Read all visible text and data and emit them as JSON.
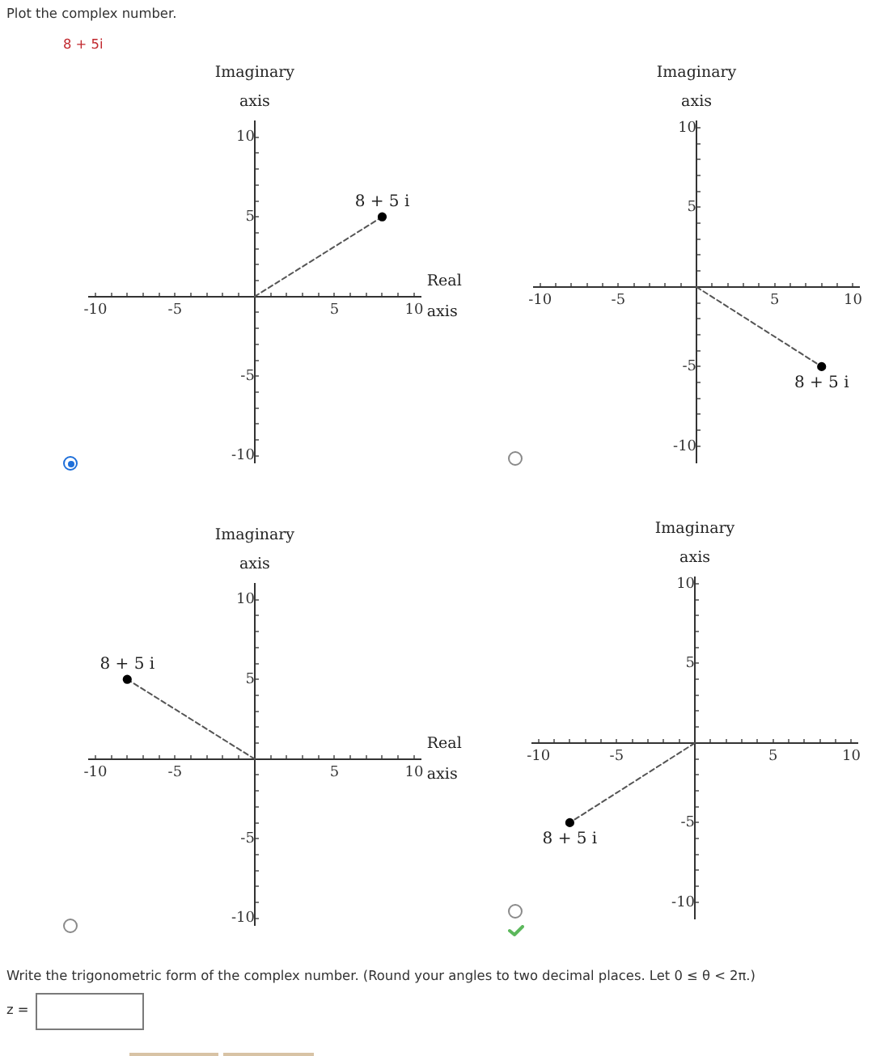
{
  "chart_data": [
    {
      "type": "scatter",
      "title": "Plot the complex number.",
      "subtitle": "8 + 5i",
      "ylabel": "Imaginary axis",
      "xlabel": "Real axis",
      "series": [
        {
          "type": "line",
          "x": [
            0,
            8
          ],
          "values": [
            0,
            5
          ],
          "color": "#555555",
          "line_style": "dashed",
          "marker": "none"
        },
        {
          "type": "scatter",
          "name": "8 + 5 i",
          "x": [
            8
          ],
          "values": [
            5
          ],
          "color": "#000000",
          "marker": "circle"
        }
      ],
      "xlim": [
        -10.4,
        10.4
      ],
      "ylim": [
        -10.4,
        11
      ],
      "xticks": [
        -10,
        {
          "value": -9,
          "label": null
        },
        {
          "value": -8,
          "label": null
        },
        {
          "value": -7,
          "label": null
        },
        {
          "value": -6,
          "label": null
        },
        -5,
        {
          "value": -4,
          "label": null
        },
        {
          "value": -3,
          "label": null
        },
        {
          "value": -2,
          "label": null
        },
        {
          "value": -1,
          "label": null
        },
        {
          "value": 1,
          "label": null
        },
        {
          "value": 2,
          "label": null
        },
        {
          "value": 3,
          "label": null
        },
        {
          "value": 4,
          "label": null
        },
        5,
        {
          "value": 6,
          "label": null
        },
        {
          "value": 7,
          "label": null
        },
        {
          "value": 8,
          "label": null
        },
        {
          "value": 9,
          "label": null
        },
        10
      ],
      "yticks": [
        -10,
        {
          "value": -9,
          "label": null
        },
        {
          "value": -8,
          "label": null
        },
        {
          "value": -7,
          "label": null
        },
        {
          "value": -6,
          "label": null
        },
        -5,
        {
          "value": -4,
          "label": null
        },
        {
          "value": -3,
          "label": null
        },
        {
          "value": -2,
          "label": null
        },
        {
          "value": -1,
          "label": null
        },
        {
          "value": 1,
          "label": null
        },
        {
          "value": 2,
          "label": null
        },
        {
          "value": 3,
          "label": null
        },
        {
          "value": 4,
          "label": null
        },
        5,
        {
          "value": 6,
          "label": null
        },
        {
          "value": 7,
          "label": null
        },
        {
          "value": 8,
          "label": null
        },
        {
          "value": 9,
          "label": null
        },
        10
      ]
    },
    {
      "type": "scatter",
      "ylabel": "Imaginary axis",
      "series": [
        {
          "type": "line",
          "x": [
            0,
            8
          ],
          "values": [
            0,
            -5
          ],
          "color": "#555555",
          "line_style": "dashed",
          "marker": "none"
        },
        {
          "type": "scatter",
          "name": "8 + 5 i",
          "x": [
            8
          ],
          "values": [
            -5
          ],
          "color": "#000000",
          "marker": "circle"
        }
      ],
      "xlim": [
        -10.4,
        10.4
      ],
      "ylim": [
        -11,
        10.4
      ],
      "xticks": [
        -10,
        {
          "value": -9,
          "label": null
        },
        {
          "value": -8,
          "label": null
        },
        {
          "value": -7,
          "label": null
        },
        {
          "value": -6,
          "label": null
        },
        -5,
        {
          "value": -4,
          "label": null
        },
        {
          "value": -3,
          "label": null
        },
        {
          "value": -2,
          "label": null
        },
        {
          "value": -1,
          "label": null
        },
        {
          "value": 1,
          "label": null
        },
        {
          "value": 2,
          "label": null
        },
        {
          "value": 3,
          "label": null
        },
        {
          "value": 4,
          "label": null
        },
        5,
        {
          "value": 6,
          "label": null
        },
        {
          "value": 7,
          "label": null
        },
        {
          "value": 8,
          "label": null
        },
        {
          "value": 9,
          "label": null
        },
        10
      ],
      "yticks": [
        -10,
        {
          "value": -9,
          "label": null
        },
        {
          "value": -8,
          "label": null
        },
        {
          "value": -7,
          "label": null
        },
        {
          "value": -6,
          "label": null
        },
        -5,
        {
          "value": -4,
          "label": null
        },
        {
          "value": -3,
          "label": null
        },
        {
          "value": -2,
          "label": null
        },
        {
          "value": -1,
          "label": null
        },
        {
          "value": 1,
          "label": null
        },
        {
          "value": 2,
          "label": null
        },
        {
          "value": 3,
          "label": null
        },
        {
          "value": 4,
          "label": null
        },
        5,
        {
          "value": 6,
          "label": null
        },
        {
          "value": 7,
          "label": null
        },
        {
          "value": 8,
          "label": null
        },
        {
          "value": 9,
          "label": null
        },
        10
      ]
    },
    {
      "type": "scatter",
      "ylabel": "Imaginary axis",
      "xlabel": "Real axis",
      "series": [
        {
          "type": "line",
          "x": [
            0,
            -8
          ],
          "values": [
            0,
            5
          ],
          "color": "#555555",
          "line_style": "dashed",
          "marker": "none"
        },
        {
          "type": "scatter",
          "name": "8 + 5 i",
          "x": [
            -8
          ],
          "values": [
            5
          ],
          "color": "#000000",
          "marker": "circle"
        }
      ],
      "xlim": [
        -10.4,
        10.4
      ],
      "ylim": [
        -10.4,
        11
      ],
      "xticks": [
        -10,
        {
          "value": -9,
          "label": null
        },
        {
          "value": -8,
          "label": null
        },
        {
          "value": -7,
          "label": null
        },
        {
          "value": -6,
          "label": null
        },
        -5,
        {
          "value": -4,
          "label": null
        },
        {
          "value": -3,
          "label": null
        },
        {
          "value": -2,
          "label": null
        },
        {
          "value": -1,
          "label": null
        },
        {
          "value": 1,
          "label": null
        },
        {
          "value": 2,
          "label": null
        },
        {
          "value": 3,
          "label": null
        },
        {
          "value": 4,
          "label": null
        },
        5,
        {
          "value": 6,
          "label": null
        },
        {
          "value": 7,
          "label": null
        },
        {
          "value": 8,
          "label": null
        },
        {
          "value": 9,
          "label": null
        },
        10
      ],
      "yticks": [
        -10,
        {
          "value": -9,
          "label": null
        },
        {
          "value": -8,
          "label": null
        },
        {
          "value": -7,
          "label": null
        },
        {
          "value": -6,
          "label": null
        },
        -5,
        {
          "value": -4,
          "label": null
        },
        {
          "value": -3,
          "label": null
        },
        {
          "value": -2,
          "label": null
        },
        {
          "value": -1,
          "label": null
        },
        {
          "value": 1,
          "label": null
        },
        {
          "value": 2,
          "label": null
        },
        {
          "value": 3,
          "label": null
        },
        {
          "value": 4,
          "label": null
        },
        5,
        {
          "value": 6,
          "label": null
        },
        {
          "value": 7,
          "label": null
        },
        {
          "value": 8,
          "label": null
        },
        {
          "value": 9,
          "label": null
        },
        10
      ]
    },
    {
      "type": "scatter",
      "ylabel": "Imaginary axis",
      "series": [
        {
          "type": "line",
          "x": [
            0,
            -8
          ],
          "values": [
            0,
            -5
          ],
          "color": "#555555",
          "line_style": "dashed",
          "marker": "none"
        },
        {
          "type": "scatter",
          "name": "8 + 5 i",
          "x": [
            -8
          ],
          "values": [
            -5
          ],
          "color": "#000000",
          "marker": "circle"
        }
      ],
      "annotations": [
        "Write the trigonometric form of the complex number. (Round your angles to two decimal places. Let 0 ≤ θ < 2π.)",
        "z ="
      ],
      "xlim": [
        -10.4,
        10.4
      ],
      "ylim": [
        -11,
        10.4
      ],
      "xticks": [
        -10,
        {
          "value": -9,
          "label": null
        },
        {
          "value": -8,
          "label": null
        },
        {
          "value": -7,
          "label": null
        },
        {
          "value": -6,
          "label": null
        },
        -5,
        {
          "value": -4,
          "label": null
        },
        {
          "value": -3,
          "label": null
        },
        {
          "value": -2,
          "label": null
        },
        {
          "value": -1,
          "label": null
        },
        {
          "value": 1,
          "label": null
        },
        {
          "value": 2,
          "label": null
        },
        {
          "value": 3,
          "label": null
        },
        {
          "value": 4,
          "label": null
        },
        5,
        {
          "value": 6,
          "label": null
        },
        {
          "value": 7,
          "label": null
        },
        {
          "value": 8,
          "label": null
        },
        {
          "value": 9,
          "label": null
        },
        10
      ],
      "yticks": [
        -10,
        {
          "value": -9,
          "label": null
        },
        {
          "value": -8,
          "label": null
        },
        {
          "value": -7,
          "label": null
        },
        {
          "value": -6,
          "label": null
        },
        -5,
        {
          "value": -4,
          "label": null
        },
        {
          "value": -3,
          "label": null
        },
        {
          "value": -2,
          "label": null
        },
        {
          "value": -1,
          "label": null
        },
        {
          "value": 1,
          "label": null
        },
        {
          "value": 2,
          "label": null
        },
        {
          "value": 3,
          "label": null
        },
        {
          "value": 4,
          "label": null
        },
        5,
        {
          "value": 6,
          "label": null
        },
        {
          "value": 7,
          "label": null
        },
        {
          "value": 8,
          "label": null
        },
        {
          "value": 9,
          "label": null
        },
        10
      ]
    }
  ]
}
